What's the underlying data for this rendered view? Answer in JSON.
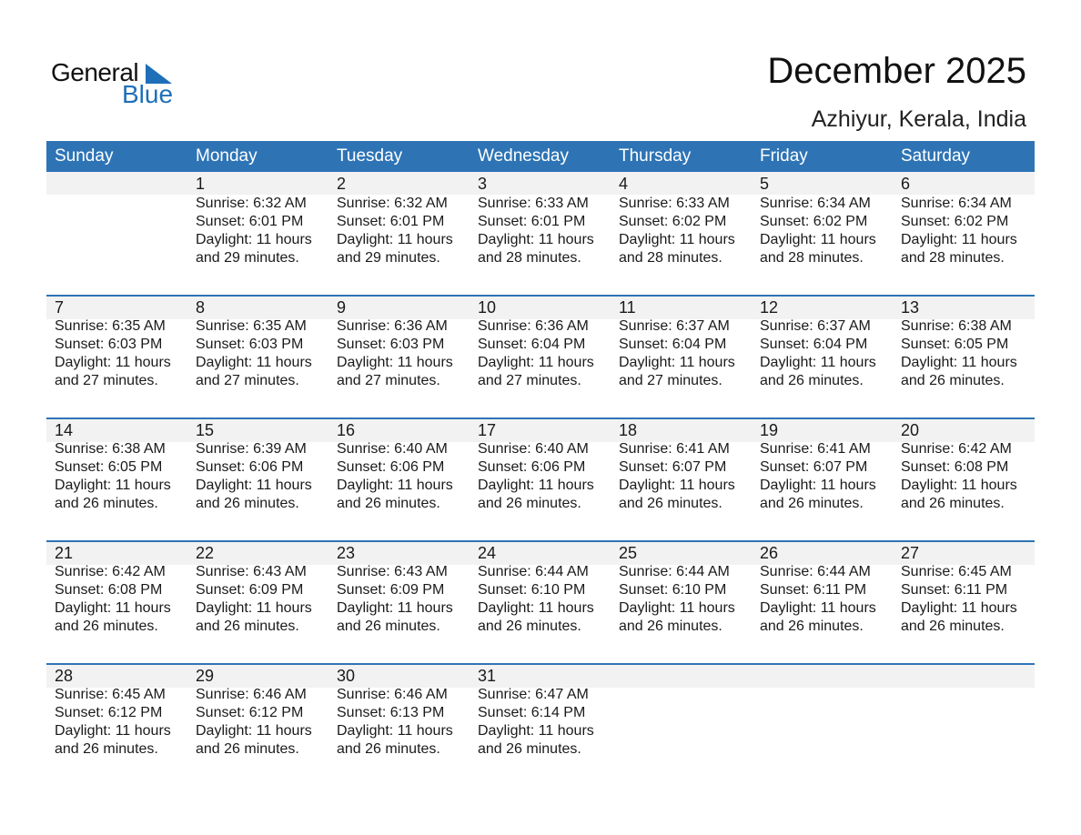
{
  "logo": {
    "general": "General",
    "blue": "Blue"
  },
  "header": {
    "title": "December 2025",
    "location": "Azhiyur, Kerala, India"
  },
  "colors": {
    "accent": "#2e74b5",
    "band": "#f2f2f2",
    "logo_blue": "#1f6fb8"
  },
  "weekdays": [
    "Sunday",
    "Monday",
    "Tuesday",
    "Wednesday",
    "Thursday",
    "Friday",
    "Saturday"
  ],
  "weeks": [
    [
      null,
      {
        "day": "1",
        "sunrise": "Sunrise: 6:32 AM",
        "sunset": "Sunset: 6:01 PM",
        "daylight": "Daylight: 11 hours",
        "minutes": "and 29 minutes."
      },
      {
        "day": "2",
        "sunrise": "Sunrise: 6:32 AM",
        "sunset": "Sunset: 6:01 PM",
        "daylight": "Daylight: 11 hours",
        "minutes": "and 29 minutes."
      },
      {
        "day": "3",
        "sunrise": "Sunrise: 6:33 AM",
        "sunset": "Sunset: 6:01 PM",
        "daylight": "Daylight: 11 hours",
        "minutes": "and 28 minutes."
      },
      {
        "day": "4",
        "sunrise": "Sunrise: 6:33 AM",
        "sunset": "Sunset: 6:02 PM",
        "daylight": "Daylight: 11 hours",
        "minutes": "and 28 minutes."
      },
      {
        "day": "5",
        "sunrise": "Sunrise: 6:34 AM",
        "sunset": "Sunset: 6:02 PM",
        "daylight": "Daylight: 11 hours",
        "minutes": "and 28 minutes."
      },
      {
        "day": "6",
        "sunrise": "Sunrise: 6:34 AM",
        "sunset": "Sunset: 6:02 PM",
        "daylight": "Daylight: 11 hours",
        "minutes": "and 28 minutes."
      }
    ],
    [
      {
        "day": "7",
        "sunrise": "Sunrise: 6:35 AM",
        "sunset": "Sunset: 6:03 PM",
        "daylight": "Daylight: 11 hours",
        "minutes": "and 27 minutes."
      },
      {
        "day": "8",
        "sunrise": "Sunrise: 6:35 AM",
        "sunset": "Sunset: 6:03 PM",
        "daylight": "Daylight: 11 hours",
        "minutes": "and 27 minutes."
      },
      {
        "day": "9",
        "sunrise": "Sunrise: 6:36 AM",
        "sunset": "Sunset: 6:03 PM",
        "daylight": "Daylight: 11 hours",
        "minutes": "and 27 minutes."
      },
      {
        "day": "10",
        "sunrise": "Sunrise: 6:36 AM",
        "sunset": "Sunset: 6:04 PM",
        "daylight": "Daylight: 11 hours",
        "minutes": "and 27 minutes."
      },
      {
        "day": "11",
        "sunrise": "Sunrise: 6:37 AM",
        "sunset": "Sunset: 6:04 PM",
        "daylight": "Daylight: 11 hours",
        "minutes": "and 27 minutes."
      },
      {
        "day": "12",
        "sunrise": "Sunrise: 6:37 AM",
        "sunset": "Sunset: 6:04 PM",
        "daylight": "Daylight: 11 hours",
        "minutes": "and 26 minutes."
      },
      {
        "day": "13",
        "sunrise": "Sunrise: 6:38 AM",
        "sunset": "Sunset: 6:05 PM",
        "daylight": "Daylight: 11 hours",
        "minutes": "and 26 minutes."
      }
    ],
    [
      {
        "day": "14",
        "sunrise": "Sunrise: 6:38 AM",
        "sunset": "Sunset: 6:05 PM",
        "daylight": "Daylight: 11 hours",
        "minutes": "and 26 minutes."
      },
      {
        "day": "15",
        "sunrise": "Sunrise: 6:39 AM",
        "sunset": "Sunset: 6:06 PM",
        "daylight": "Daylight: 11 hours",
        "minutes": "and 26 minutes."
      },
      {
        "day": "16",
        "sunrise": "Sunrise: 6:40 AM",
        "sunset": "Sunset: 6:06 PM",
        "daylight": "Daylight: 11 hours",
        "minutes": "and 26 minutes."
      },
      {
        "day": "17",
        "sunrise": "Sunrise: 6:40 AM",
        "sunset": "Sunset: 6:06 PM",
        "daylight": "Daylight: 11 hours",
        "minutes": "and 26 minutes."
      },
      {
        "day": "18",
        "sunrise": "Sunrise: 6:41 AM",
        "sunset": "Sunset: 6:07 PM",
        "daylight": "Daylight: 11 hours",
        "minutes": "and 26 minutes."
      },
      {
        "day": "19",
        "sunrise": "Sunrise: 6:41 AM",
        "sunset": "Sunset: 6:07 PM",
        "daylight": "Daylight: 11 hours",
        "minutes": "and 26 minutes."
      },
      {
        "day": "20",
        "sunrise": "Sunrise: 6:42 AM",
        "sunset": "Sunset: 6:08 PM",
        "daylight": "Daylight: 11 hours",
        "minutes": "and 26 minutes."
      }
    ],
    [
      {
        "day": "21",
        "sunrise": "Sunrise: 6:42 AM",
        "sunset": "Sunset: 6:08 PM",
        "daylight": "Daylight: 11 hours",
        "minutes": "and 26 minutes."
      },
      {
        "day": "22",
        "sunrise": "Sunrise: 6:43 AM",
        "sunset": "Sunset: 6:09 PM",
        "daylight": "Daylight: 11 hours",
        "minutes": "and 26 minutes."
      },
      {
        "day": "23",
        "sunrise": "Sunrise: 6:43 AM",
        "sunset": "Sunset: 6:09 PM",
        "daylight": "Daylight: 11 hours",
        "minutes": "and 26 minutes."
      },
      {
        "day": "24",
        "sunrise": "Sunrise: 6:44 AM",
        "sunset": "Sunset: 6:10 PM",
        "daylight": "Daylight: 11 hours",
        "minutes": "and 26 minutes."
      },
      {
        "day": "25",
        "sunrise": "Sunrise: 6:44 AM",
        "sunset": "Sunset: 6:10 PM",
        "daylight": "Daylight: 11 hours",
        "minutes": "and 26 minutes."
      },
      {
        "day": "26",
        "sunrise": "Sunrise: 6:44 AM",
        "sunset": "Sunset: 6:11 PM",
        "daylight": "Daylight: 11 hours",
        "minutes": "and 26 minutes."
      },
      {
        "day": "27",
        "sunrise": "Sunrise: 6:45 AM",
        "sunset": "Sunset: 6:11 PM",
        "daylight": "Daylight: 11 hours",
        "minutes": "and 26 minutes."
      }
    ],
    [
      {
        "day": "28",
        "sunrise": "Sunrise: 6:45 AM",
        "sunset": "Sunset: 6:12 PM",
        "daylight": "Daylight: 11 hours",
        "minutes": "and 26 minutes."
      },
      {
        "day": "29",
        "sunrise": "Sunrise: 6:46 AM",
        "sunset": "Sunset: 6:12 PM",
        "daylight": "Daylight: 11 hours",
        "minutes": "and 26 minutes."
      },
      {
        "day": "30",
        "sunrise": "Sunrise: 6:46 AM",
        "sunset": "Sunset: 6:13 PM",
        "daylight": "Daylight: 11 hours",
        "minutes": "and 26 minutes."
      },
      {
        "day": "31",
        "sunrise": "Sunrise: 6:47 AM",
        "sunset": "Sunset: 6:14 PM",
        "daylight": "Daylight: 11 hours",
        "minutes": "and 26 minutes."
      },
      null,
      null,
      null
    ]
  ]
}
